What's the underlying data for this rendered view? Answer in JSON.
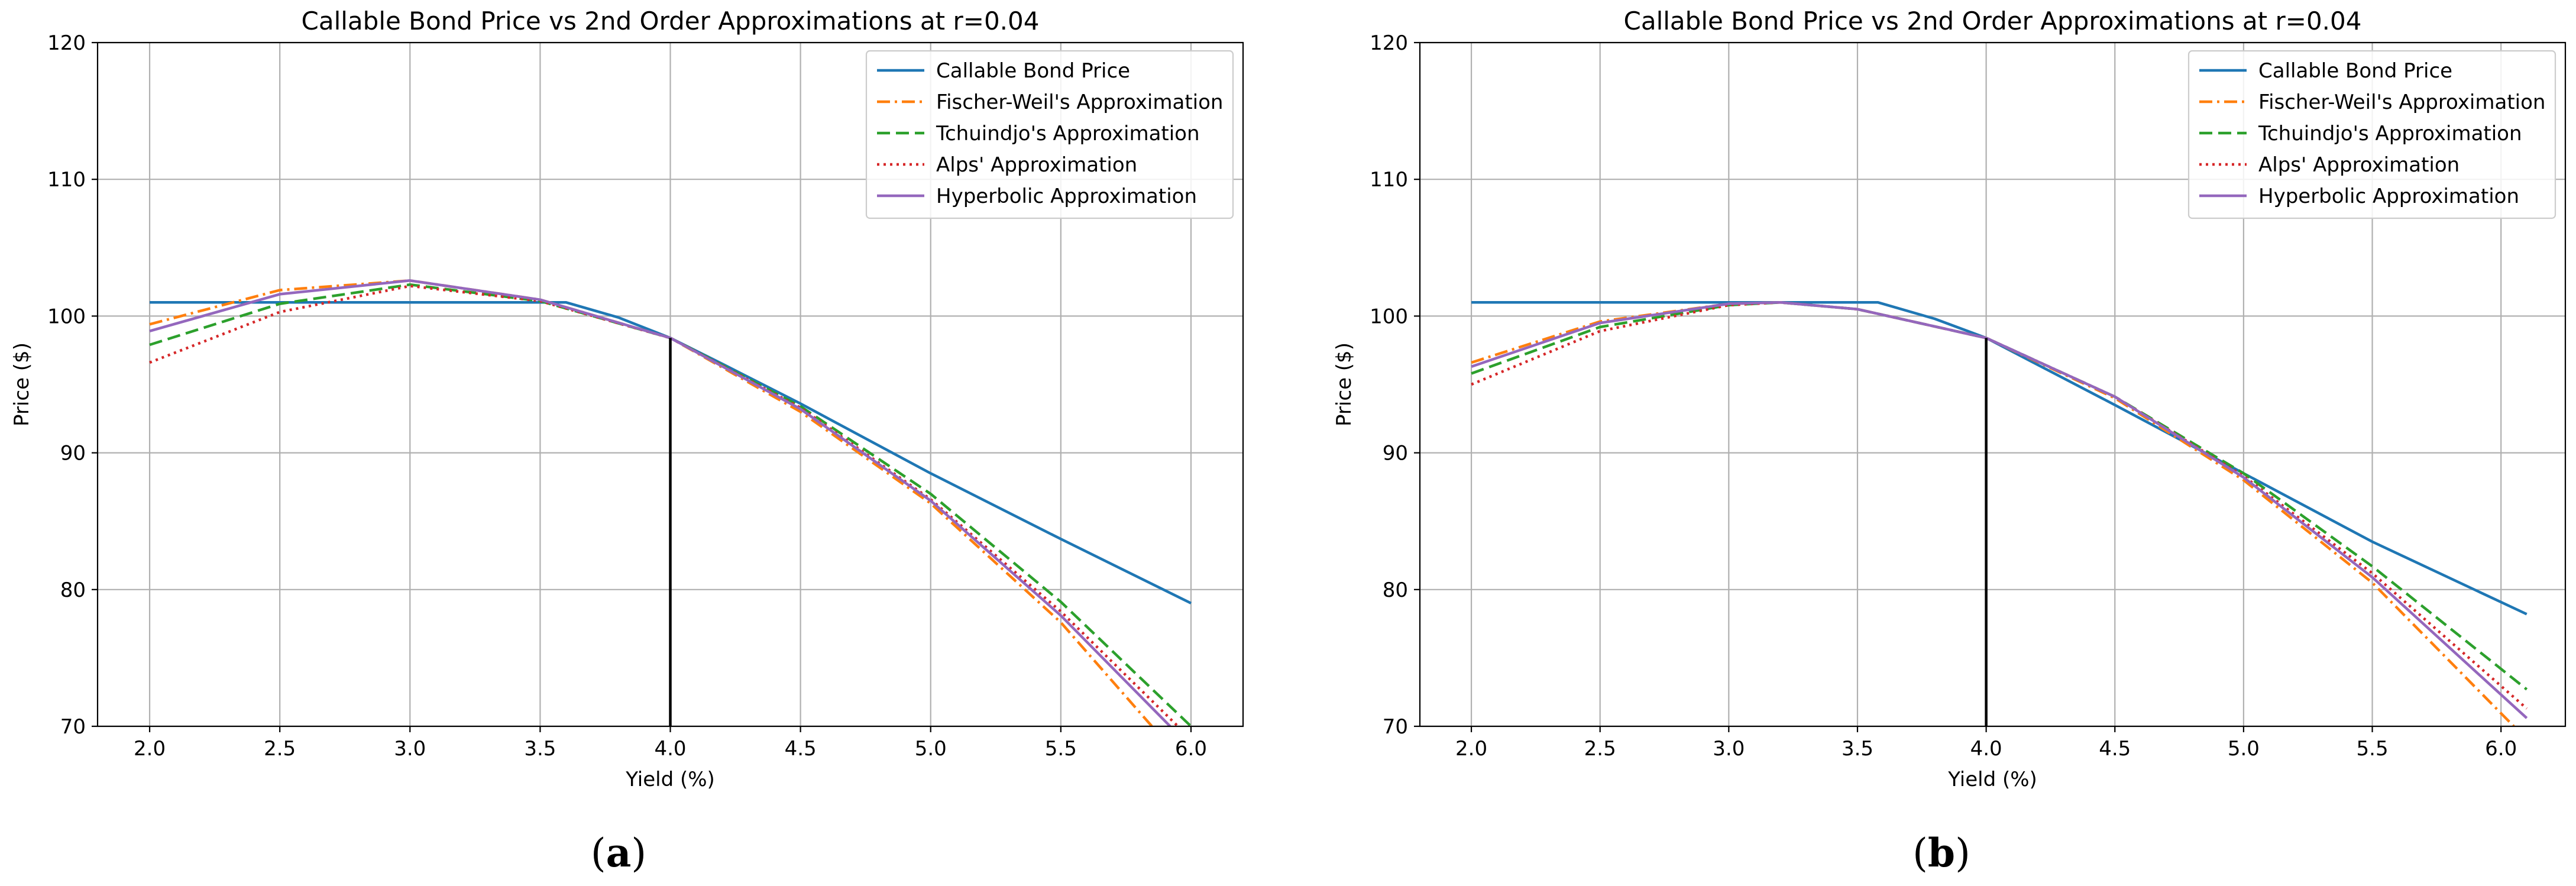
{
  "figure": {
    "captions": [
      {
        "open": "(",
        "letter": "a",
        "close": ")"
      },
      {
        "open": "(",
        "letter": "b",
        "close": ")"
      }
    ]
  },
  "chart_data": [
    {
      "type": "line",
      "title": "Callable Bond Price vs 2nd Order Approximations at r=0.04",
      "xlabel": "Yield (%)",
      "ylabel": "Price ($)",
      "xlim": [
        1.8,
        6.2
      ],
      "ylim": [
        70,
        120
      ],
      "xticks": [
        2.0,
        2.5,
        3.0,
        3.5,
        4.0,
        4.5,
        5.0,
        5.5,
        6.0
      ],
      "xtick_labels": [
        "2.0",
        "2.5",
        "3.0",
        "3.5",
        "4.0",
        "4.5",
        "5.0",
        "5.5",
        "6.0"
      ],
      "yticks": [
        70,
        80,
        90,
        100,
        110,
        120
      ],
      "ytick_labels": [
        "70",
        "80",
        "90",
        "100",
        "110",
        "120"
      ],
      "grid": true,
      "legend_position": "top-right",
      "vline": {
        "x": 4.0,
        "y_from": 70,
        "y_to": 98.4,
        "color": "#000000"
      },
      "series": [
        {
          "name": "Callable Bond Price",
          "color": "#1f77b4",
          "dash": "solid",
          "x": [
            2.0,
            2.5,
            3.0,
            3.5,
            3.6,
            3.8,
            4.0,
            4.2,
            4.5,
            5.0,
            5.5,
            6.0
          ],
          "y": [
            101.0,
            101.0,
            101.0,
            101.0,
            101.0,
            99.9,
            98.4,
            96.5,
            93.6,
            88.5,
            83.7,
            79.0
          ]
        },
        {
          "name": "Fischer-Weil's Approximation",
          "color": "#ff7f0e",
          "dash": "dashdot",
          "x": [
            2.0,
            2.5,
            3.0,
            3.5,
            4.0,
            4.5,
            5.0,
            5.5,
            5.85
          ],
          "y": [
            99.4,
            101.9,
            102.6,
            101.2,
            98.4,
            93.0,
            86.3,
            77.6,
            70.0
          ]
        },
        {
          "name": "Tchuindjo's Approximation",
          "color": "#2ca02c",
          "dash": "dashed",
          "x": [
            2.0,
            2.5,
            3.0,
            3.5,
            4.0,
            4.5,
            5.0,
            5.5,
            6.0
          ],
          "y": [
            97.9,
            100.9,
            102.3,
            101.1,
            98.4,
            93.4,
            87.0,
            79.1,
            70.0
          ]
        },
        {
          "name": "Alps' Approximation",
          "color": "#d62728",
          "dash": "dotted",
          "x": [
            2.0,
            2.5,
            3.0,
            3.5,
            4.0,
            4.5,
            5.0,
            5.5,
            5.95
          ],
          "y": [
            96.6,
            100.3,
            102.2,
            101.1,
            98.4,
            93.3,
            86.6,
            78.4,
            70.0
          ]
        },
        {
          "name": "Hyperbolic Approximation",
          "color": "#9467bd",
          "dash": "solid",
          "x": [
            2.0,
            2.5,
            3.0,
            3.5,
            4.0,
            4.5,
            5.0,
            5.5,
            5.92
          ],
          "y": [
            98.9,
            101.6,
            102.6,
            101.2,
            98.4,
            93.2,
            86.5,
            78.1,
            70.0
          ]
        }
      ]
    },
    {
      "type": "line",
      "title": "Callable Bond Price vs 2nd Order Approximations at r=0.04",
      "xlabel": "Yield (%)",
      "ylabel": "Price ($)",
      "xlim": [
        1.8,
        6.25
      ],
      "ylim": [
        70,
        120
      ],
      "xticks": [
        2.0,
        2.5,
        3.0,
        3.5,
        4.0,
        4.5,
        5.0,
        5.5,
        6.0
      ],
      "xtick_labels": [
        "2.0",
        "2.5",
        "3.0",
        "3.5",
        "4.0",
        "4.5",
        "5.0",
        "5.5",
        "6.0"
      ],
      "yticks": [
        70,
        80,
        90,
        100,
        110,
        120
      ],
      "ytick_labels": [
        "70",
        "80",
        "90",
        "100",
        "110",
        "120"
      ],
      "grid": true,
      "legend_position": "top-right",
      "vline": {
        "x": 4.0,
        "y_from": 70,
        "y_to": 98.4,
        "color": "#000000"
      },
      "series": [
        {
          "name": "Callable Bond Price",
          "color": "#1f77b4",
          "dash": "solid",
          "x": [
            2.0,
            2.5,
            3.0,
            3.5,
            3.58,
            3.8,
            4.0,
            4.5,
            5.0,
            5.5,
            6.1
          ],
          "y": [
            101.0,
            101.0,
            101.0,
            101.0,
            101.0,
            99.8,
            98.4,
            93.5,
            88.5,
            83.5,
            78.2
          ]
        },
        {
          "name": "Fischer-Weil's Approximation",
          "color": "#ff7f0e",
          "dash": "dashdot",
          "x": [
            2.0,
            2.5,
            3.0,
            3.2,
            3.5,
            4.0,
            4.5,
            5.0,
            5.5,
            6.05
          ],
          "y": [
            96.6,
            99.6,
            100.9,
            101.0,
            100.5,
            98.4,
            94.0,
            88.0,
            80.5,
            70.0
          ]
        },
        {
          "name": "Tchuindjo's Approximation",
          "color": "#2ca02c",
          "dash": "dashed",
          "x": [
            2.0,
            2.5,
            3.0,
            3.2,
            3.5,
            4.0,
            4.5,
            5.0,
            5.5,
            6.1
          ],
          "y": [
            95.8,
            99.2,
            100.8,
            101.0,
            100.5,
            98.4,
            94.1,
            88.5,
            81.7,
            72.7
          ]
        },
        {
          "name": "Alps' Approximation",
          "color": "#d62728",
          "dash": "dotted",
          "x": [
            2.0,
            2.5,
            3.0,
            3.2,
            3.5,
            4.0,
            4.5,
            5.0,
            5.5,
            6.1
          ],
          "y": [
            95.0,
            98.9,
            100.8,
            101.0,
            100.5,
            98.4,
            94.1,
            88.3,
            81.2,
            71.3
          ]
        },
        {
          "name": "Hyperbolic Approximation",
          "color": "#9467bd",
          "dash": "solid",
          "x": [
            2.0,
            2.5,
            3.0,
            3.2,
            3.5,
            4.0,
            4.5,
            5.0,
            5.5,
            6.1
          ],
          "y": [
            96.3,
            99.5,
            100.9,
            101.0,
            100.5,
            98.4,
            94.1,
            88.2,
            80.9,
            70.6
          ]
        }
      ]
    }
  ]
}
